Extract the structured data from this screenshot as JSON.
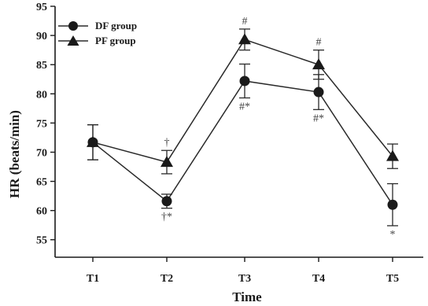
{
  "chart_data": {
    "type": "line",
    "xlabel": "Time",
    "ylabel": "HR (beats/min)",
    "categories": [
      "T1",
      "T2",
      "T3",
      "T4",
      "T5"
    ],
    "ylim": [
      52,
      95
    ],
    "yticks": [
      55,
      60,
      65,
      70,
      75,
      80,
      85,
      90,
      95
    ],
    "grid": false,
    "legend_position": "top-left",
    "series": [
      {
        "name": "DF group",
        "marker": "circle",
        "values": [
          71.7,
          61.6,
          82.2,
          80.3,
          61.0
        ],
        "error": [
          3.0,
          1.2,
          2.9,
          3.0,
          3.6
        ],
        "annotations": [
          "",
          "†*",
          "#*",
          "#*",
          "*"
        ]
      },
      {
        "name": "PF group",
        "marker": "triangle",
        "values": [
          71.7,
          68.3,
          89.3,
          85.0,
          69.3
        ],
        "error": [
          3.0,
          2.0,
          1.8,
          2.5,
          2.1
        ],
        "annotations": [
          "",
          "†",
          "#",
          "#",
          ""
        ]
      }
    ]
  }
}
